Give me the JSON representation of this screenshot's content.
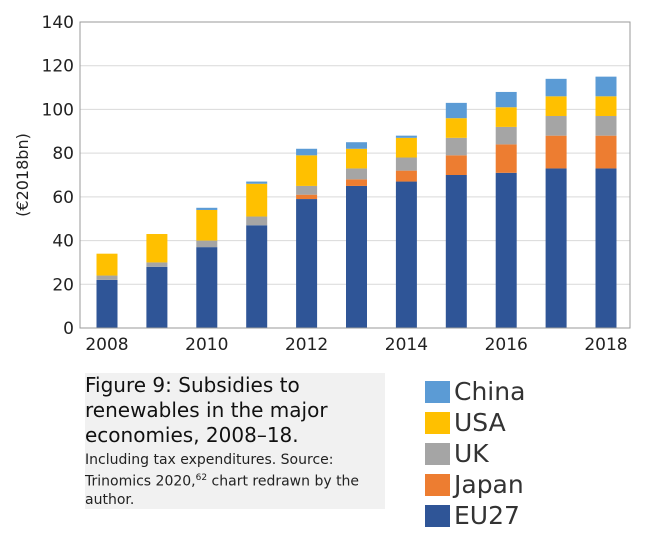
{
  "chart_data": {
    "type": "bar",
    "stacked": true,
    "ylabel": "(€2018bn)",
    "ylim": [
      0,
      140
    ],
    "yticks": [
      0,
      20,
      40,
      60,
      80,
      100,
      120,
      140
    ],
    "years": [
      2008,
      2009,
      2010,
      2011,
      2012,
      2013,
      2014,
      2015,
      2016,
      2017,
      2018
    ],
    "xtick_labels": [
      "2008",
      "2010",
      "2012",
      "2014",
      "2016",
      "2018"
    ],
    "grid": "horizontal",
    "series": [
      {
        "name": "EU27",
        "color": "#2f5597",
        "values": [
          22,
          28,
          37,
          47,
          59,
          65,
          67,
          70,
          71,
          73,
          73
        ]
      },
      {
        "name": "Japan",
        "color": "#ed7d31",
        "values": [
          0,
          0,
          0,
          0,
          2,
          3,
          5,
          9,
          13,
          15,
          15
        ]
      },
      {
        "name": "UK",
        "color": "#a5a5a5",
        "values": [
          2,
          2,
          3,
          4,
          4,
          5,
          6,
          8,
          8,
          9,
          9
        ]
      },
      {
        "name": "USA",
        "color": "#ffc000",
        "values": [
          10,
          13,
          14,
          15,
          14,
          9,
          9,
          9,
          9,
          9,
          9
        ]
      },
      {
        "name": "China",
        "color": "#5b9bd5",
        "values": [
          0,
          0,
          1,
          1,
          3,
          3,
          1,
          7,
          7,
          8,
          9
        ]
      }
    ]
  },
  "caption": {
    "title": "Figure 9: Subsidies to renewables in the major economies, 2008–18.",
    "subtitle_pre": "Including tax expenditures. Source: Trinomics 2020,",
    "subtitle_ref": "62",
    "subtitle_post": " chart redrawn by the author."
  },
  "legend": {
    "order": [
      "China",
      "USA",
      "UK",
      "Japan",
      "EU27"
    ]
  }
}
